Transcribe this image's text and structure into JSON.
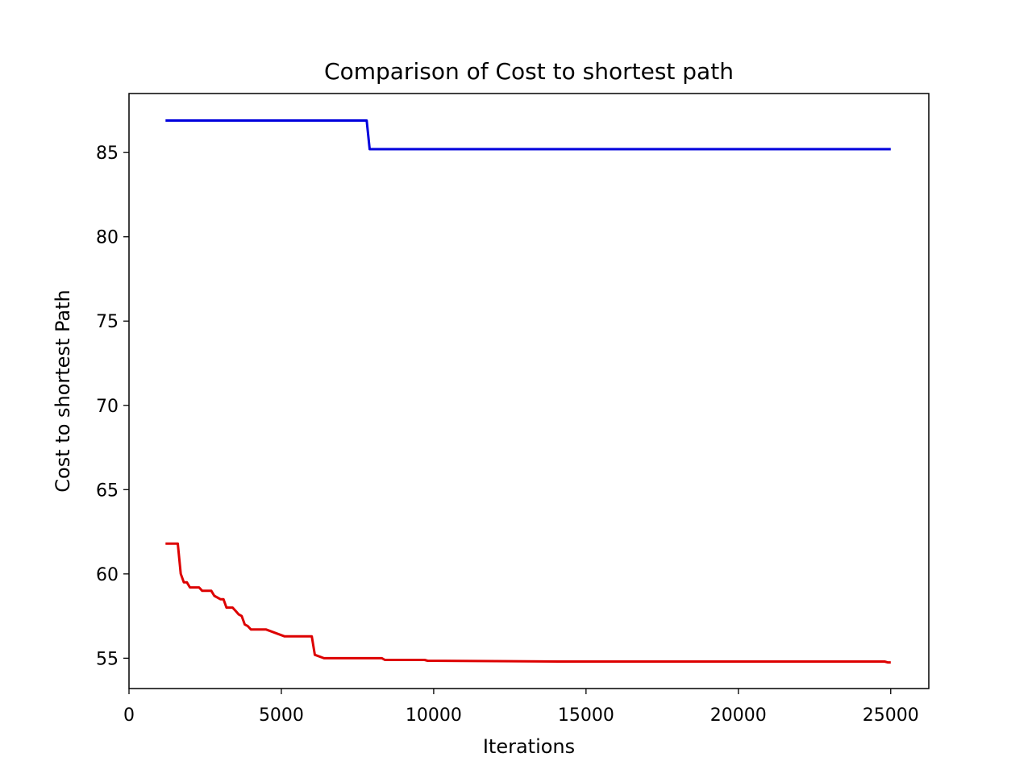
{
  "chart_data": {
    "type": "line",
    "title": "Comparison of Cost to shortest path",
    "xlabel": "Iterations",
    "ylabel": "Cost to shortest Path",
    "xlim": [
      0,
      26250
    ],
    "ylim": [
      53.2,
      88.5
    ],
    "xticks": [
      0,
      5000,
      10000,
      15000,
      20000,
      25000
    ],
    "yticks": [
      55,
      60,
      65,
      70,
      75,
      80,
      85
    ],
    "grid": false,
    "legend": "none",
    "series": [
      {
        "color": "#0000dd",
        "x": [
          1200,
          7800,
          7900,
          25000
        ],
        "y": [
          86.9,
          86.9,
          85.2,
          85.2
        ]
      },
      {
        "color": "#dd0000",
        "x": [
          1200,
          1600,
          1700,
          1800,
          1900,
          2000,
          2100,
          2300,
          2400,
          2700,
          2800,
          3000,
          3100,
          3200,
          3400,
          3500,
          3600,
          3700,
          3800,
          3900,
          4000,
          4200,
          4400,
          4500,
          5100,
          5200,
          6000,
          6100,
          6400,
          7600,
          8300,
          8400,
          9700,
          9800,
          14100,
          20300,
          24800,
          24900,
          25000
        ],
        "y": [
          61.8,
          61.8,
          60.0,
          59.5,
          59.5,
          59.2,
          59.2,
          59.2,
          59.0,
          59.0,
          58.7,
          58.5,
          58.5,
          58.0,
          58.0,
          57.8,
          57.6,
          57.5,
          57.0,
          56.9,
          56.7,
          56.7,
          56.7,
          56.7,
          56.3,
          56.3,
          56.3,
          55.2,
          55.0,
          55.0,
          55.0,
          54.9,
          54.9,
          54.85,
          54.8,
          54.8,
          54.8,
          54.75,
          54.75
        ]
      }
    ]
  }
}
